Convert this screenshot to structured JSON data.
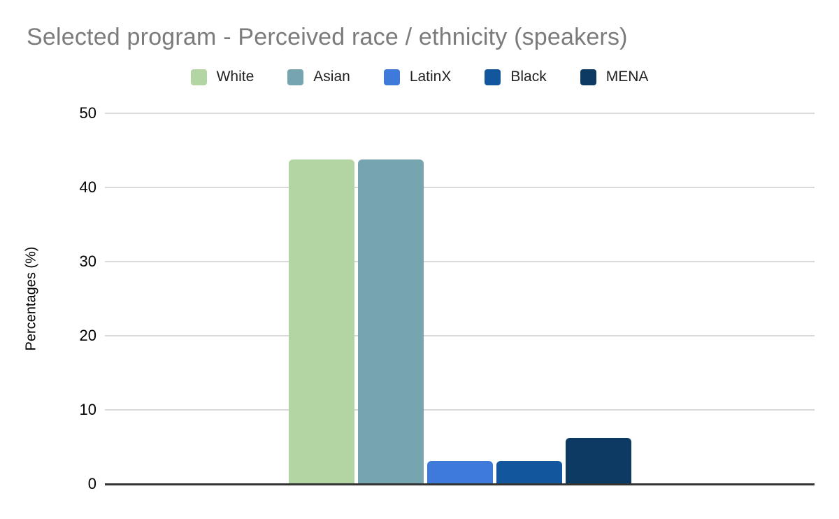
{
  "title": "Selected program - Perceived race / ethnicity (speakers)",
  "legend": {
    "position": "top",
    "items": [
      {
        "label": "White",
        "color": "#b3d5a4"
      },
      {
        "label": "Asian",
        "color": "#76a5af"
      },
      {
        "label": "LatinX",
        "color": "#3d7ad9"
      },
      {
        "label": "Black",
        "color": "#12579e"
      },
      {
        "label": "MENA",
        "color": "#0c3a63"
      }
    ]
  },
  "colors": {
    "title_text": "#7b7b7b",
    "axis_text": "#000000",
    "gridline": "#d9d9d9",
    "baseline": "#333333",
    "background": "#ffffff"
  },
  "chart_data": {
    "type": "bar",
    "title": "Selected program - Perceived race / ethnicity (speakers)",
    "categories": [
      "White",
      "Asian",
      "LatinX",
      "Black",
      "MENA"
    ],
    "values": [
      43.75,
      43.75,
      3.125,
      3.125,
      6.25
    ],
    "bar_colors": [
      "#b3d5a4",
      "#76a5af",
      "#3d7ad9",
      "#12579e",
      "#0c3a63"
    ],
    "xlabel": "",
    "ylabel": "Percentages (%)",
    "ylim": [
      0,
      50
    ],
    "yticks": [
      0,
      10,
      20,
      30,
      40,
      50
    ],
    "grid": true,
    "legend_position": "top"
  }
}
